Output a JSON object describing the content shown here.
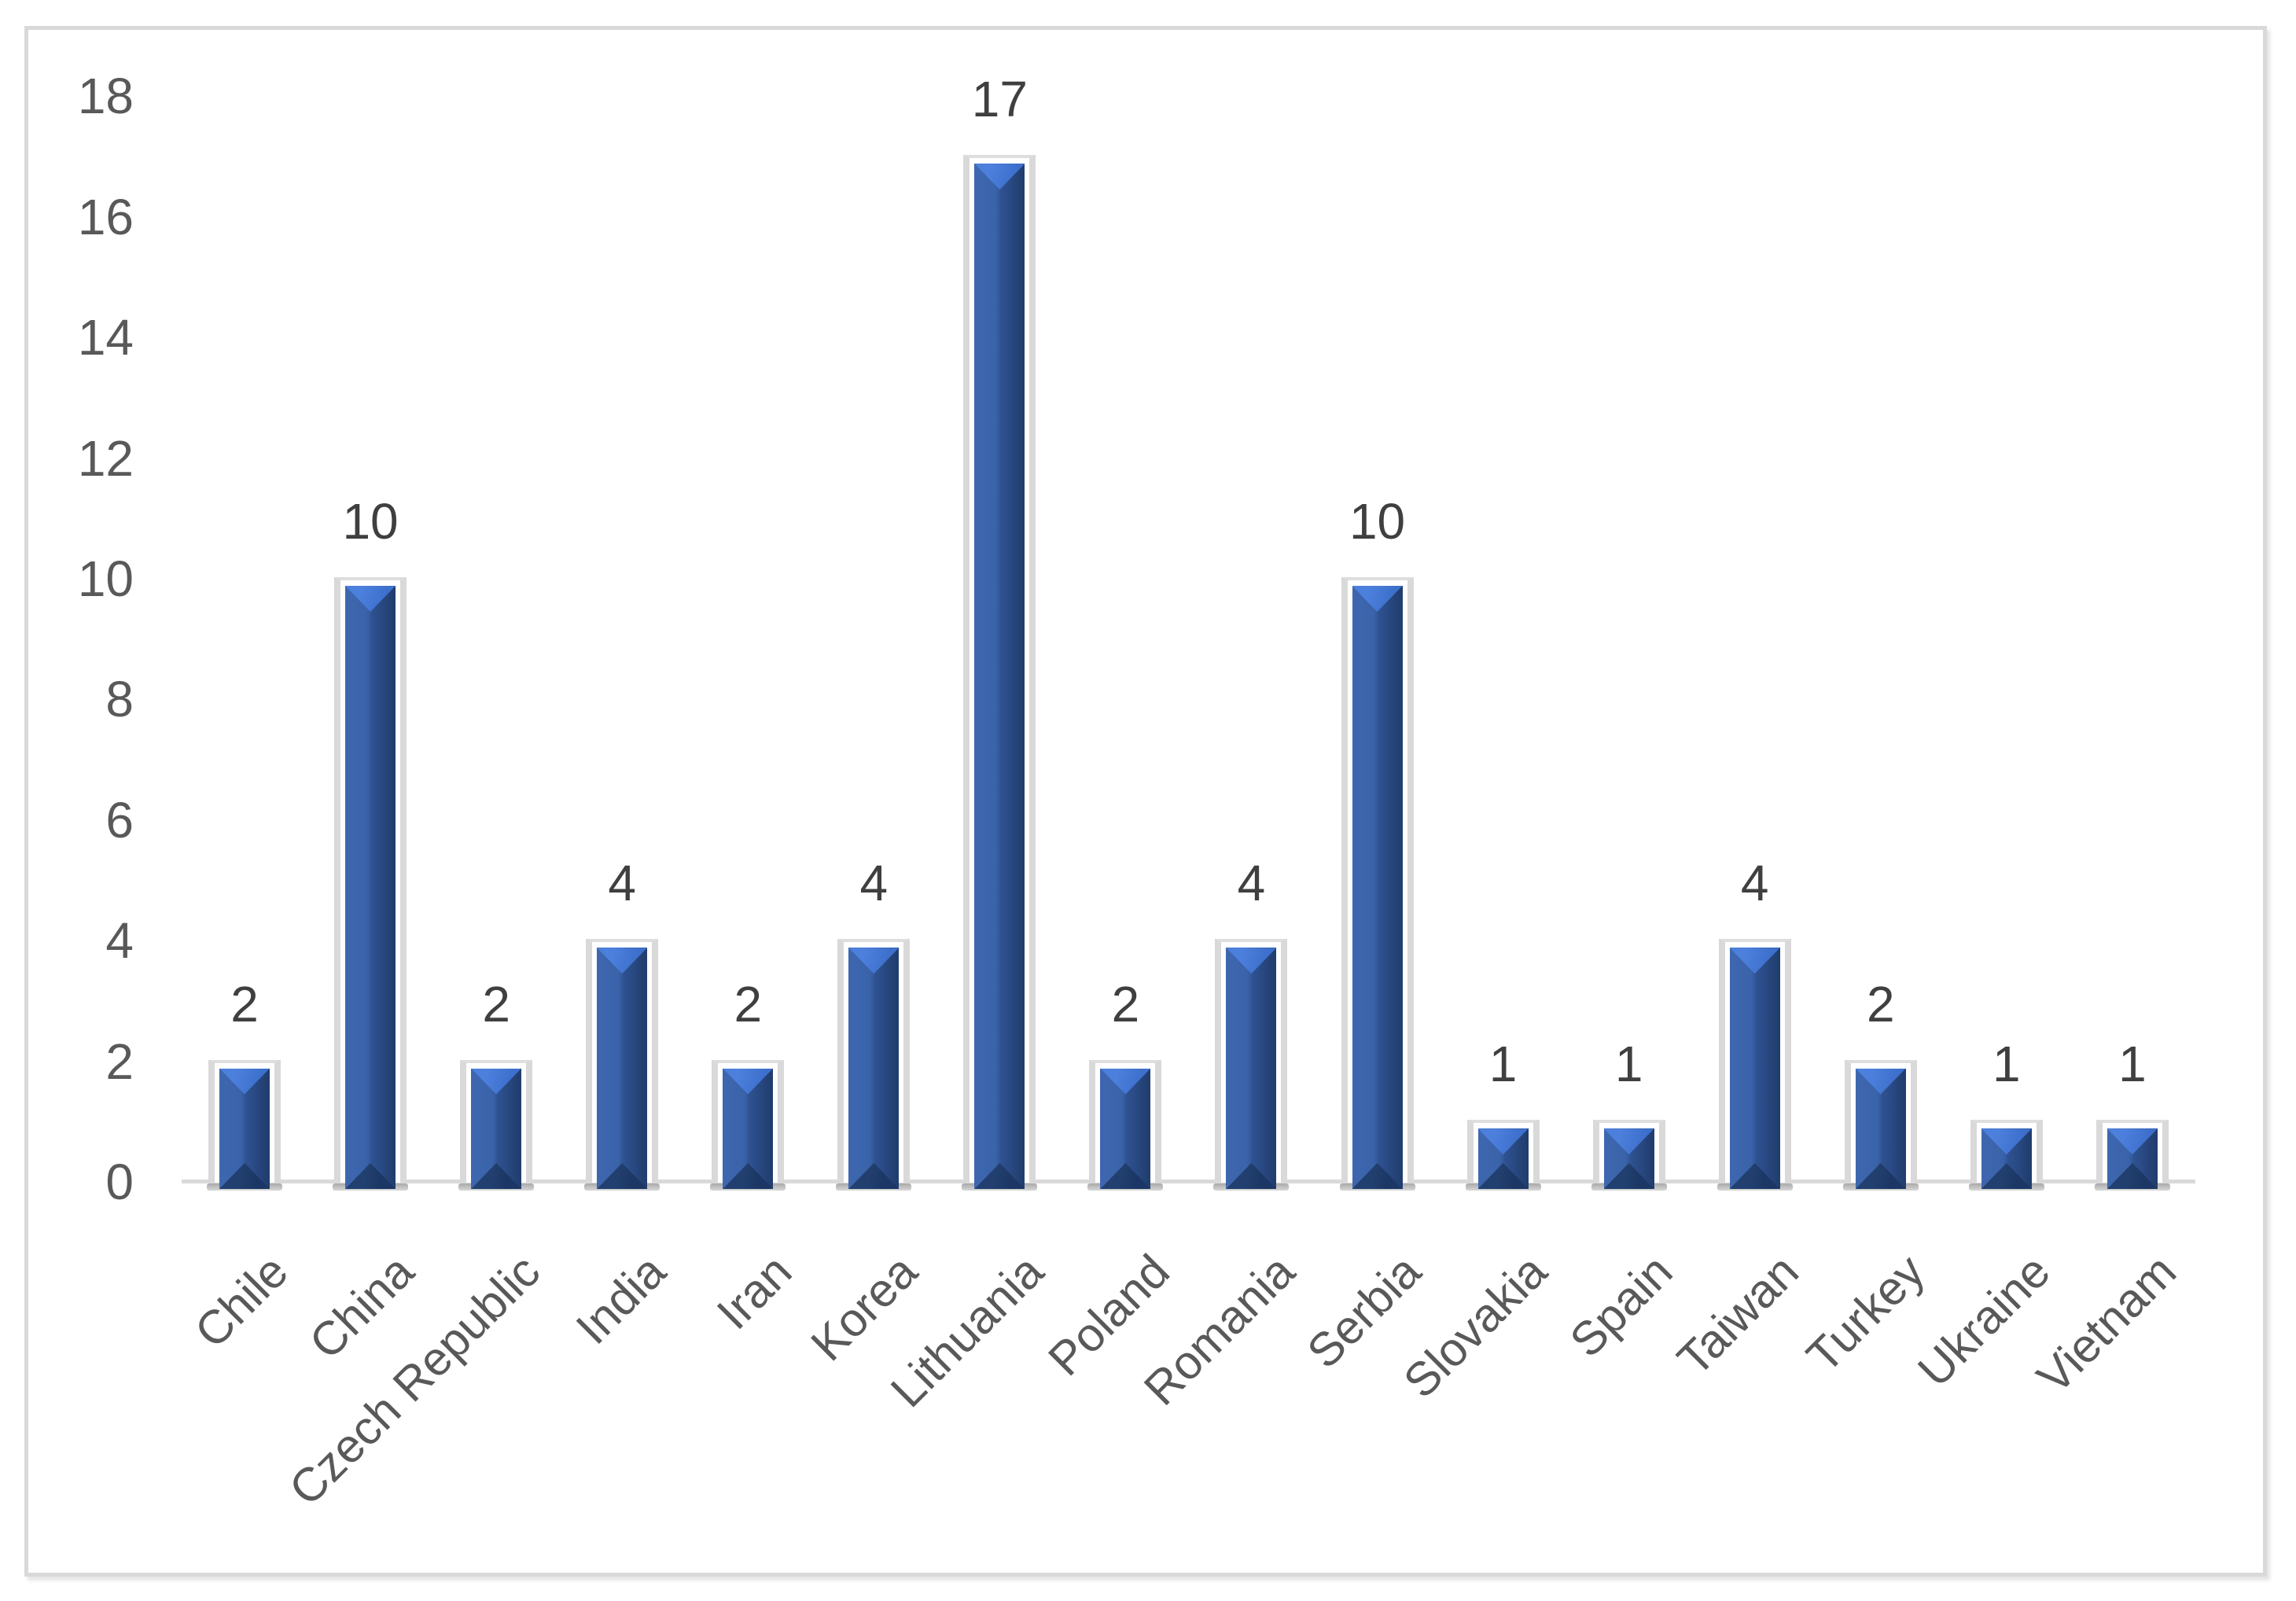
{
  "chart_data": {
    "type": "bar",
    "title": "",
    "xlabel": "",
    "ylabel": "",
    "categories": [
      "Chile",
      "China",
      "Czech Republic",
      "India",
      "Iran",
      "Korea",
      "Lithuania",
      "Poland",
      "Romania",
      "Serbia",
      "Slovakia",
      "Spain",
      "Taiwan",
      "Turkey",
      "Ukraine",
      "Vietnam"
    ],
    "values": [
      2,
      10,
      2,
      4,
      2,
      4,
      17,
      2,
      4,
      10,
      1,
      1,
      4,
      2,
      1,
      1
    ],
    "data_labels": [
      "2",
      "10",
      "2",
      "4",
      "2",
      "4",
      "17",
      "2",
      "4",
      "10",
      "1",
      "1",
      "4",
      "2",
      "1",
      "1"
    ],
    "ylim": [
      0,
      18
    ],
    "ytick_step": 2,
    "yticks": [
      0,
      2,
      4,
      6,
      8,
      10,
      12,
      14,
      16,
      18
    ],
    "grid": false,
    "legend": null,
    "bar_style": "3d-beveled-column",
    "colors": {
      "bar_face_left": "#3E67AF",
      "bar_face_mid": "#2F5291",
      "bar_face_right": "#203D6E",
      "bar_top_bevel_light": "#4C80DC",
      "bar_top_bevel_dark": "#3D70CC",
      "bar_bottom_bevel": "#1C3765",
      "backdrop_wall": "#D9D9D9",
      "axis_line": "#D9D9D9",
      "frame_border": "#D9D9D9",
      "tick_label": "#595959",
      "category_label": "#595959",
      "value_label": "#3F3F3F",
      "background": "#FFFFFF"
    }
  }
}
